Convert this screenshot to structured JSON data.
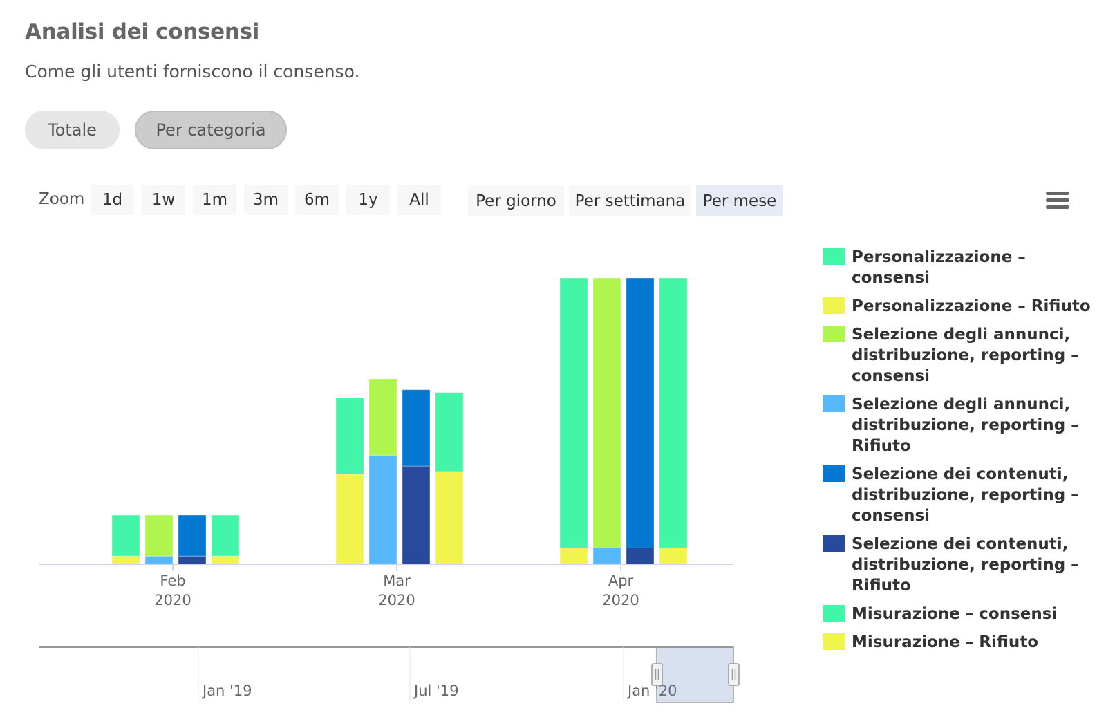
{
  "header": {
    "title": "Analisi dei consensi",
    "subtitle": "Come gli utenti forniscono il consenso."
  },
  "mode_buttons": [
    {
      "label": "Totale",
      "active": false
    },
    {
      "label": "Per categoria",
      "active": true
    }
  ],
  "toolbar": {
    "zoom_label": "Zoom",
    "zoom_buttons": [
      "1d",
      "1w",
      "1m",
      "3m",
      "6m",
      "1y",
      "All"
    ],
    "period_buttons": [
      "Per giorno",
      "Per settimana",
      "Per mese"
    ],
    "active_period": "Per mese",
    "menu_icon": "hamburger-menu-icon"
  },
  "chart_data": {
    "type": "bar",
    "stacked": "by group",
    "categories": [
      "Feb 2020",
      "Mar 2020",
      "Apr 2020"
    ],
    "x_tick_labels": [
      {
        "month": "Feb",
        "year": "2020"
      },
      {
        "month": "Mar",
        "year": "2020"
      },
      {
        "month": "Apr",
        "year": "2020"
      }
    ],
    "ylim": [
      0,
      105
    ],
    "y_axis_visible": false,
    "grid": false,
    "legend_position": "right",
    "series": [
      {
        "name": "Personalizzazione – consensi",
        "stack": "Personalizzazione",
        "color": "#42f5a7",
        "values": [
          15,
          28,
          99
        ]
      },
      {
        "name": "Personalizzazione – Rifiuto",
        "stack": "Personalizzazione",
        "color": "#f1f44d",
        "values": [
          3,
          33,
          6
        ]
      },
      {
        "name": "Selezione degli annunci, distribuzione, reporting – consensi",
        "stack": "Selezione degli annunci",
        "color": "#b0f54d",
        "values": [
          15,
          28,
          99
        ]
      },
      {
        "name": "Selezione degli annunci, distribuzione, reporting – Rifiuto",
        "stack": "Selezione degli annunci",
        "color": "#57b8fc",
        "values": [
          3,
          40,
          6
        ]
      },
      {
        "name": "Selezione dei contenuti, distribuzione, reporting – consensi",
        "stack": "Selezione dei contenuti",
        "color": "#0377d1",
        "values": [
          15,
          28,
          99
        ]
      },
      {
        "name": "Selezione dei contenuti, distribuzione, reporting – Rifiuto",
        "stack": "Selezione dei contenuti",
        "color": "#274a9c",
        "values": [
          3,
          36,
          6
        ]
      },
      {
        "name": "Misurazione – consensi",
        "stack": "Misurazione",
        "color": "#42f5a7",
        "values": [
          15,
          29,
          99
        ]
      },
      {
        "name": "Misurazione – Rifiuto",
        "stack": "Misurazione",
        "color": "#f1f44d",
        "values": [
          3,
          34,
          6
        ]
      }
    ],
    "navigator": {
      "tick_labels": [
        "Jan '19",
        "Jul '19",
        "Jan '20"
      ],
      "selected_range": "Feb 2020 – Apr 2020"
    }
  }
}
